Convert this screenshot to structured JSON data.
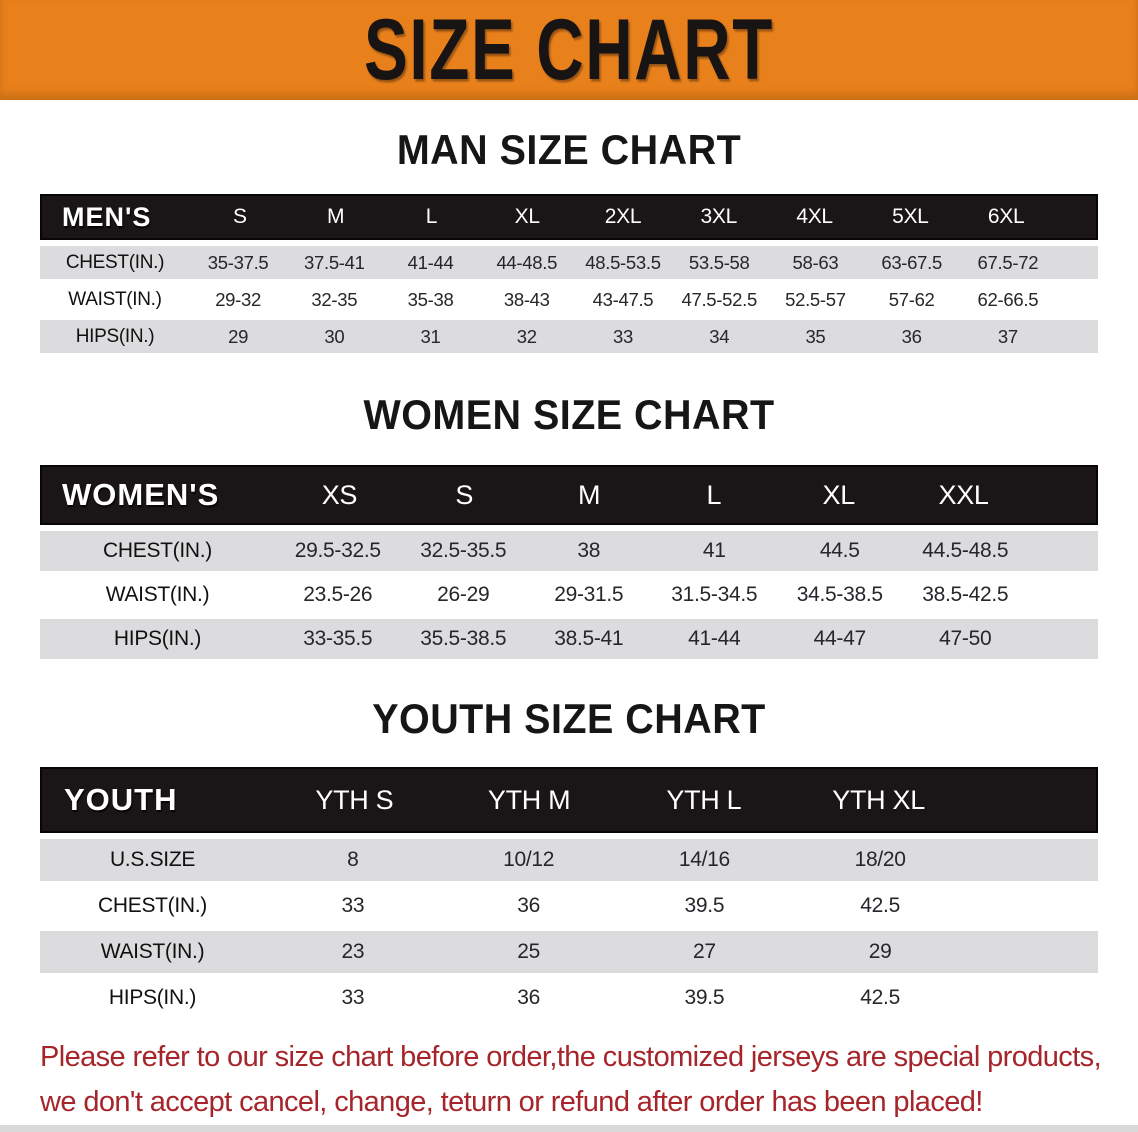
{
  "banner": {
    "title": "SIZE CHART"
  },
  "colors": {
    "banner_bg": "#E8801C",
    "header_bg": "#1A1516",
    "row_alt": "#DCDCDE",
    "disclaimer": "#A6252B"
  },
  "sections": [
    {
      "heading": "MAN SIZE CHART",
      "group_label": "MEN'S",
      "columns": [
        "S",
        "M",
        "L",
        "XL",
        "2XL",
        "3XL",
        "4XL",
        "5XL",
        "6XL"
      ],
      "rows": [
        {
          "label": "CHEST(IN.)",
          "values": [
            "35-37.5",
            "37.5-41",
            "41-44",
            "44-48.5",
            "48.5-53.5",
            "53.5-58",
            "58-63",
            "63-67.5",
            "67.5-72"
          ]
        },
        {
          "label": "WAIST(IN.)",
          "values": [
            "29-32",
            "32-35",
            "35-38",
            "38-43",
            "43-47.5",
            "47.5-52.5",
            "52.5-57",
            "57-62",
            "62-66.5"
          ]
        },
        {
          "label": "HIPS(IN.)",
          "values": [
            "29",
            "30",
            "31",
            "32",
            "33",
            "34",
            "35",
            "36",
            "37"
          ]
        }
      ]
    },
    {
      "heading": "WOMEN SIZE CHART",
      "group_label": "WOMEN'S",
      "columns": [
        "XS",
        "S",
        "M",
        "L",
        "XL",
        "XXL"
      ],
      "rows": [
        {
          "label": "CHEST(IN.)",
          "values": [
            "29.5-32.5",
            "32.5-35.5",
            "38",
            "41",
            "44.5",
            "44.5-48.5"
          ]
        },
        {
          "label": "WAIST(IN.)",
          "values": [
            "23.5-26",
            "26-29",
            "29-31.5",
            "31.5-34.5",
            "34.5-38.5",
            "38.5-42.5"
          ]
        },
        {
          "label": "HIPS(IN.)",
          "values": [
            "33-35.5",
            "35.5-38.5",
            "38.5-41",
            "41-44",
            "44-47",
            "47-50"
          ]
        }
      ]
    },
    {
      "heading": "YOUTH SIZE CHART",
      "group_label": "YOUTH",
      "columns": [
        "YTH S",
        "YTH M",
        "YTH L",
        "YTH XL"
      ],
      "rows": [
        {
          "label": "U.S.SIZE",
          "values": [
            "8",
            "10/12",
            "14/16",
            "18/20"
          ]
        },
        {
          "label": "CHEST(IN.)",
          "values": [
            "33",
            "36",
            "39.5",
            "42.5"
          ]
        },
        {
          "label": "WAIST(IN.)",
          "values": [
            "23",
            "25",
            "27",
            "29"
          ]
        },
        {
          "label": "HIPS(IN.)",
          "values": [
            "33",
            "36",
            "39.5",
            "42.5"
          ]
        }
      ]
    }
  ],
  "disclaimer": {
    "line1": "Please refer to our size chart before order,the customized jerseys are special products,",
    "line2": "we don't accept cancel, change, teturn or refund after order has been placed!"
  }
}
